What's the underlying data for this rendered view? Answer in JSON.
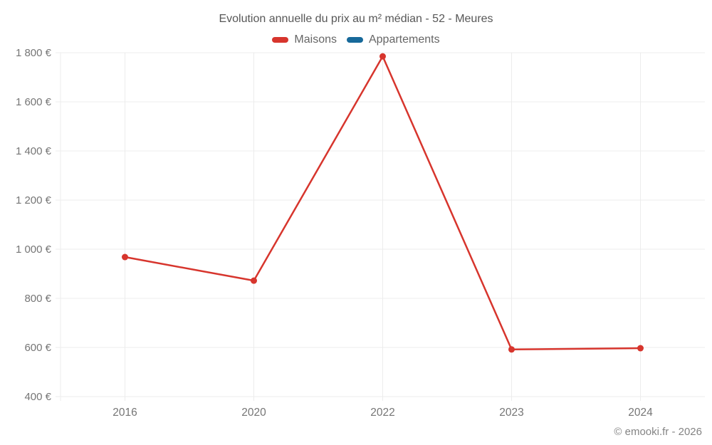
{
  "title": "Evolution annuelle du prix au m² médian - 52 - Meures",
  "legend": [
    {
      "label": "Maisons",
      "color": "#d7352d"
    },
    {
      "label": "Appartements",
      "color": "#17699a"
    }
  ],
  "attribution": "© emooki.fr - 2026",
  "colors": {
    "grid": "#ececec",
    "axis_label": "#757575",
    "title_text": "#575757",
    "legend_text": "#666666",
    "attribution_text": "#848484",
    "background": "#ffffff"
  },
  "chart_data": {
    "type": "line",
    "categories": [
      "2016",
      "2020",
      "2022",
      "2023",
      "2024"
    ],
    "series": [
      {
        "name": "Maisons",
        "color": "#d7352d",
        "values": [
          968,
          872,
          1785,
          592,
          597
        ]
      },
      {
        "name": "Appartements",
        "color": "#17699a",
        "values": []
      }
    ],
    "title": "Evolution annuelle du prix au m² médian - 52 - Meures",
    "xlabel": "",
    "ylabel": "",
    "ylim": [
      400,
      1800
    ],
    "ytick_step": 200,
    "ytick_suffix": " €",
    "grid": true,
    "legend_position": "top",
    "marker": "circle"
  }
}
